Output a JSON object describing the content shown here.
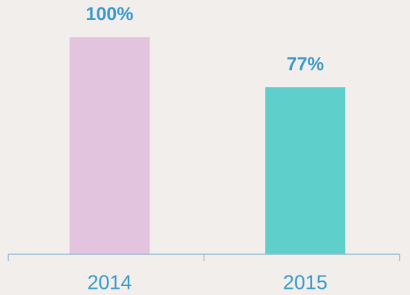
{
  "chart_data": {
    "type": "bar",
    "categories": [
      "2014",
      "2015"
    ],
    "values": [
      100,
      77
    ],
    "value_labels": [
      "100%",
      "77%"
    ],
    "colors": [
      "#e2c4df",
      "#5ecfcb"
    ]
  }
}
